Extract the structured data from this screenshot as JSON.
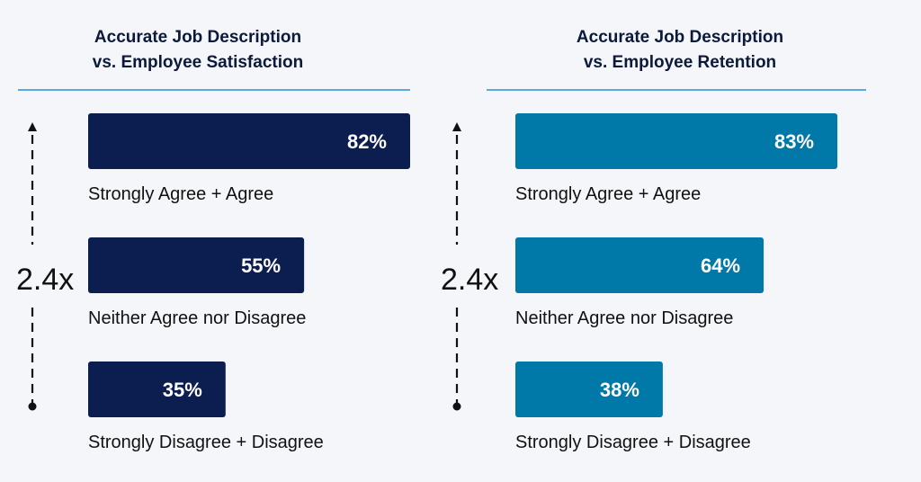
{
  "charts": [
    {
      "id": "chart-left",
      "title_lines": [
        "Accurate Job Description",
        "vs. Employee Satisfaction"
      ],
      "multiplier": "2.4x",
      "color": "#0c1d50",
      "divider_color": "#5aa9dc"
    },
    {
      "id": "chart-right",
      "title_lines": [
        "Accurate Job Description",
        "vs. Employee Retention"
      ],
      "multiplier": "2.4x",
      "color": "#0078a8",
      "divider_color": "#5aa9dc"
    }
  ],
  "chart_data": [
    {
      "type": "bar",
      "orientation": "horizontal",
      "title": "Accurate Job Description vs. Employee Satisfaction",
      "categories": [
        "Strongly Agree + Agree",
        "Neither Agree nor Disagree",
        "Strongly Disagree + Disagree"
      ],
      "values": [
        82,
        55,
        35
      ],
      "value_labels": [
        "82%",
        "55%",
        "35%"
      ],
      "annotation": "2.4x",
      "xlim": [
        0,
        82
      ]
    },
    {
      "type": "bar",
      "orientation": "horizontal",
      "title": "Accurate Job Description vs. Employee Retention",
      "categories": [
        "Strongly Agree + Agree",
        "Neither Agree nor Disagree",
        "Strongly Disagree + Disagree"
      ],
      "values": [
        83,
        64,
        38
      ],
      "value_labels": [
        "83%",
        "64%",
        "38%"
      ],
      "annotation": "2.4x",
      "xlim": [
        0,
        83
      ]
    }
  ]
}
